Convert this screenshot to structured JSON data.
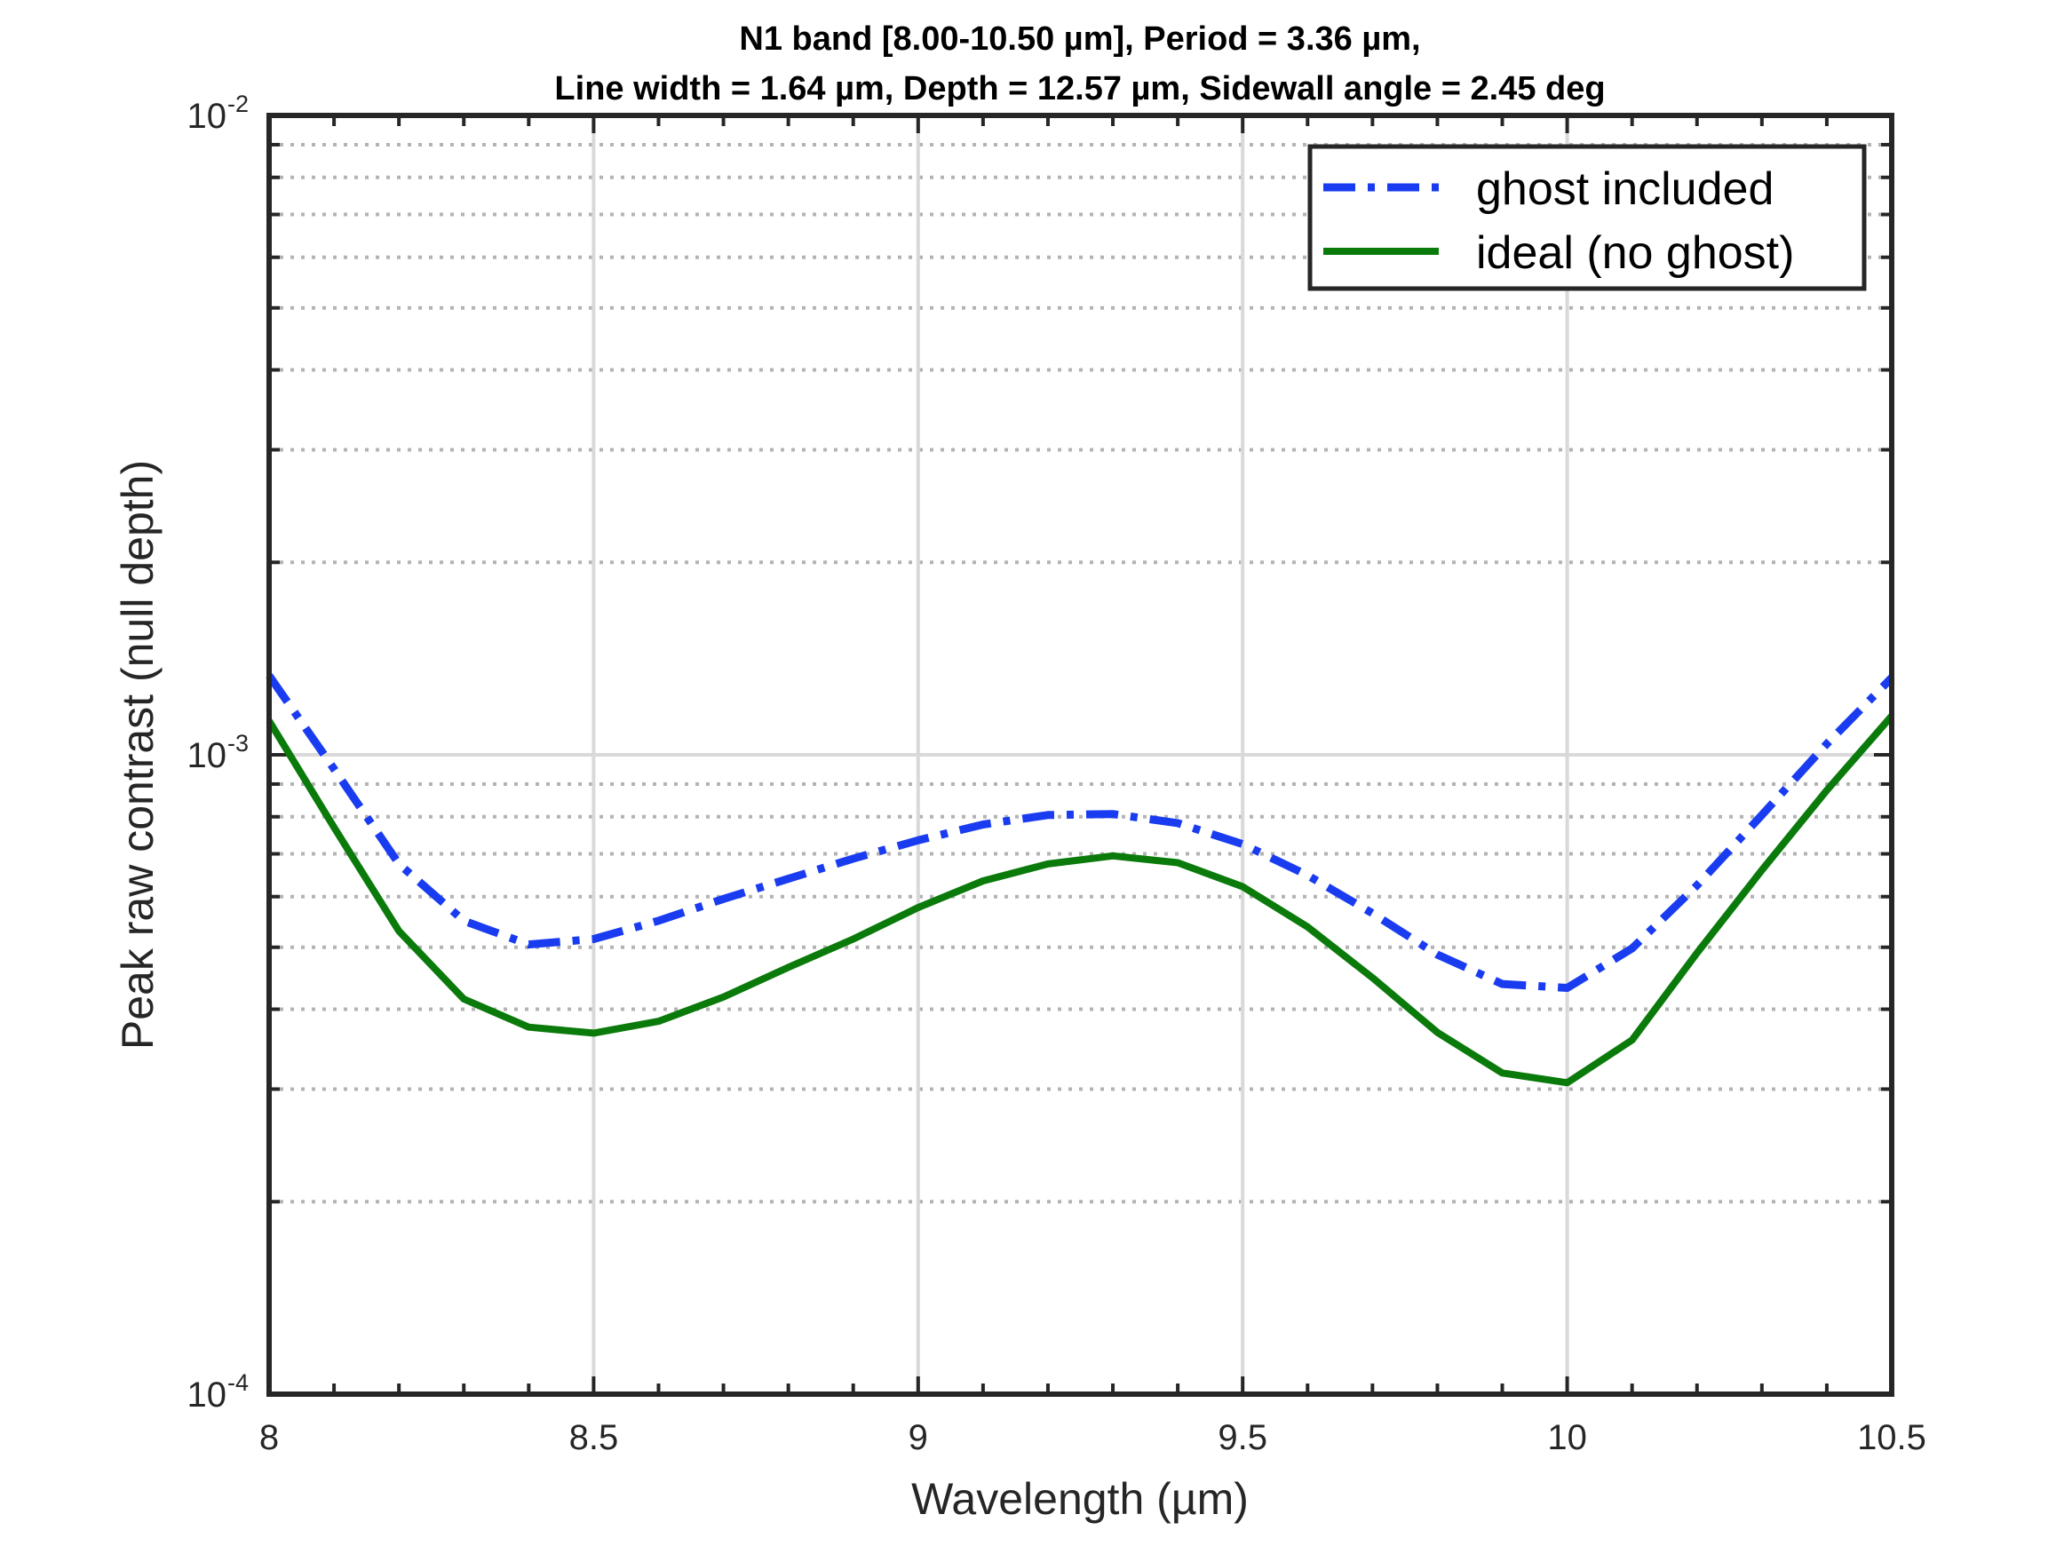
{
  "chart_data": {
    "type": "line",
    "title_lines": [
      "N1 band [8.00-10.50 µm], Period = 3.36 µm,",
      "Line width = 1.64 µm, Depth = 12.57 µm, Sidewall angle = 2.45 deg"
    ],
    "xlabel": "Wavelength (µm)",
    "ylabel": "Peak raw contrast (null depth)",
    "xlim": [
      8,
      10.5
    ],
    "ylim": [
      0.0001,
      0.01
    ],
    "yscale": "log",
    "grid": true,
    "legend_position": "top-right",
    "x_ticks": [
      {
        "value": 8,
        "label": "8"
      },
      {
        "value": 8.5,
        "label": "8.5"
      },
      {
        "value": 9,
        "label": "9"
      },
      {
        "value": 9.5,
        "label": "9.5"
      },
      {
        "value": 10,
        "label": "10"
      },
      {
        "value": 10.5,
        "label": "10.5"
      }
    ],
    "y_ticks": [
      {
        "value": 0.0001,
        "base": "10",
        "exponent": "-4"
      },
      {
        "value": 0.001,
        "base": "10",
        "exponent": "-3"
      },
      {
        "value": 0.01,
        "base": "10",
        "exponent": "-2"
      }
    ],
    "x": [
      8.0,
      8.1,
      8.2,
      8.3,
      8.4,
      8.5,
      8.6,
      8.7,
      8.8,
      8.9,
      9.0,
      9.1,
      9.2,
      9.3,
      9.4,
      9.5,
      9.6,
      9.7,
      9.8,
      9.9,
      10.0,
      10.1,
      10.2,
      10.3,
      10.4,
      10.5
    ],
    "series": [
      {
        "name": "ghost included",
        "color": "#1a3cf0",
        "style": "dash-dot",
        "values": [
          0.00133,
          0.00095,
          0.000675,
          0.00055,
          0.000505,
          0.000515,
          0.00055,
          0.000595,
          0.00064,
          0.000688,
          0.000735,
          0.000778,
          0.000805,
          0.000808,
          0.000782,
          0.000725,
          0.000648,
          0.000565,
          0.000487,
          0.000438,
          0.000432,
          0.000498,
          0.000625,
          0.000805,
          0.00104,
          0.00132
        ]
      },
      {
        "name": "ideal (no ghost)",
        "color": "#0a7a0a",
        "style": "solid",
        "values": [
          0.00113,
          0.00077,
          0.00053,
          0.000415,
          0.000375,
          0.000367,
          0.000383,
          0.000418,
          0.000465,
          0.000515,
          0.000577,
          0.000635,
          0.000675,
          0.000695,
          0.000678,
          0.000622,
          0.000538,
          0.000448,
          0.000368,
          0.000318,
          0.000307,
          0.000358,
          0.00049,
          0.00066,
          0.00088,
          0.00115
        ]
      }
    ]
  }
}
